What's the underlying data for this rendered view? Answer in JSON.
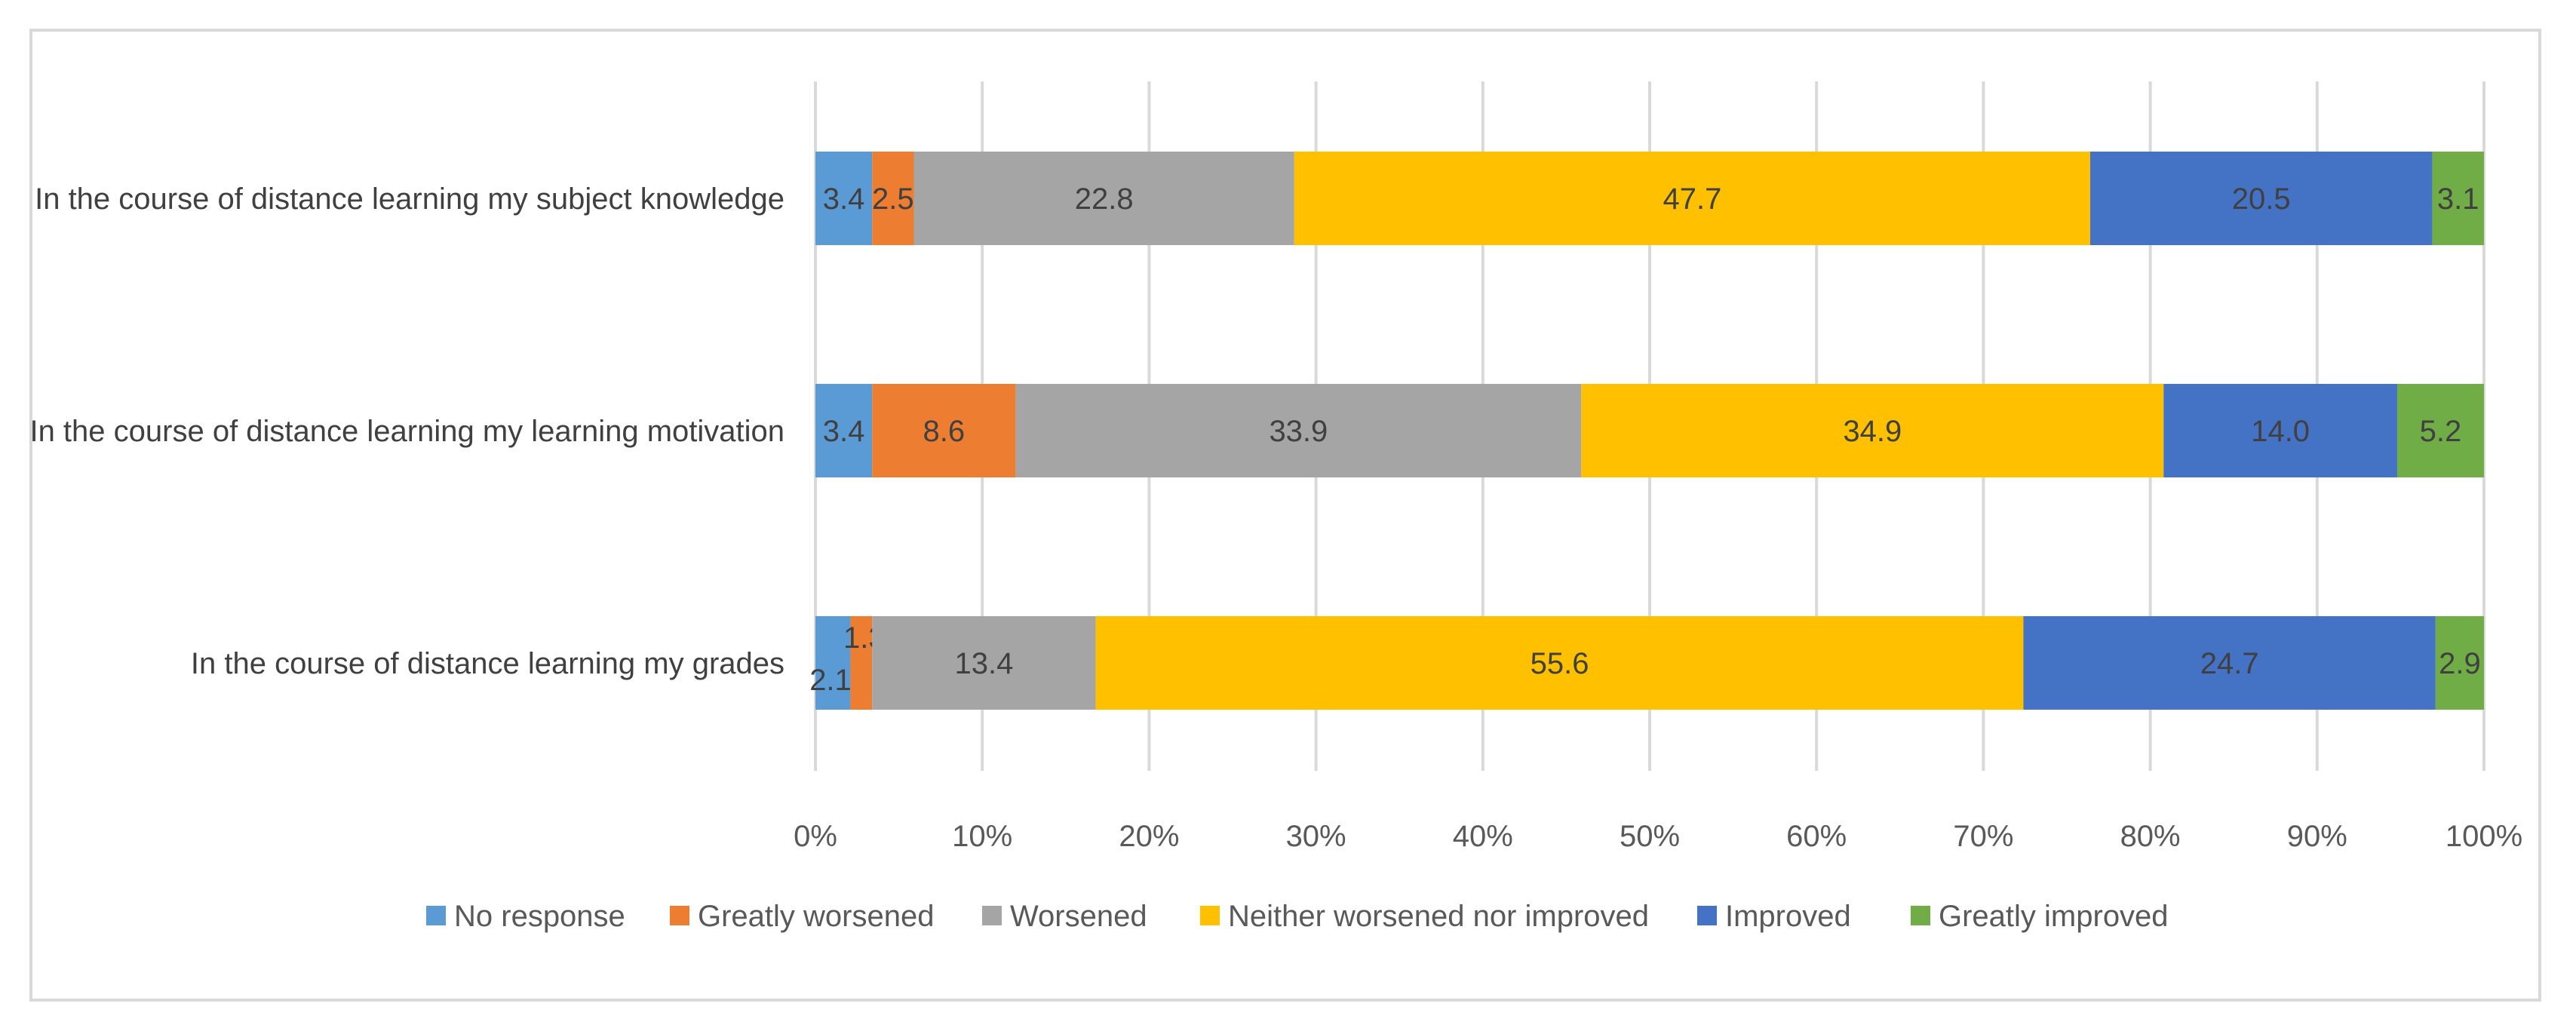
{
  "chart_data": {
    "type": "bar",
    "orientation": "horizontal",
    "stacked": "percent",
    "title": "",
    "xlabel": "",
    "ylabel": "",
    "xlim": [
      0,
      100
    ],
    "grid": true,
    "legend_position": "bottom",
    "categories": [
      "In the course of distance learning my subject knowledge",
      "In the course of distance learning my learning motivation",
      "In the course of distance learning my grades"
    ],
    "x_ticks": [
      "0%",
      "10%",
      "20%",
      "30%",
      "40%",
      "50%",
      "60%",
      "70%",
      "80%",
      "90%",
      "100%"
    ],
    "series": [
      {
        "name": "No response",
        "color": "#5b9bd5",
        "values": [
          3.4,
          3.4,
          2.1
        ]
      },
      {
        "name": "Greatly worsened",
        "color": "#ed7d31",
        "values": [
          2.5,
          8.6,
          1.3
        ]
      },
      {
        "name": "Worsened",
        "color": "#a5a5a5",
        "values": [
          22.8,
          33.9,
          13.4
        ]
      },
      {
        "name": "Neither worsened nor improved",
        "color": "#ffc000",
        "values": [
          47.7,
          34.9,
          55.6
        ]
      },
      {
        "name": "Improved",
        "color": "#4472c4",
        "values": [
          20.5,
          14.0,
          24.7
        ]
      },
      {
        "name": "Greatly improved",
        "color": "#70ad47",
        "values": [
          3.1,
          5.2,
          2.9
        ]
      }
    ]
  }
}
